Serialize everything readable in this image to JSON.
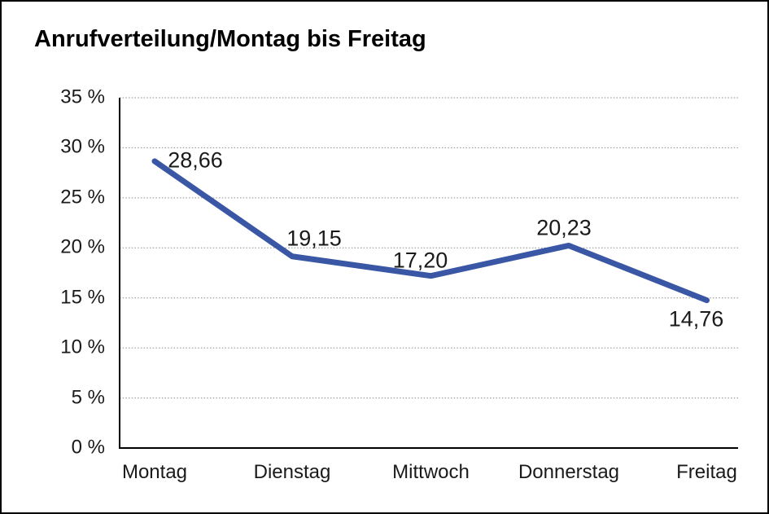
{
  "window": {
    "background": "#ffffff",
    "border_color": "#000000"
  },
  "chart_data": {
    "type": "line",
    "title": "Anrufverteilung/Montag bis Freitag",
    "categories": [
      "Montag",
      "Dienstag",
      "Mittwoch",
      "Donnerstag",
      "Freitag"
    ],
    "series": [
      {
        "name": "Anrufverteilung",
        "values": [
          28.66,
          19.15,
          17.2,
          20.23,
          14.76
        ]
      }
    ],
    "data_labels": [
      "28,66",
      "19,15",
      "17,20",
      "20,23",
      "14,76"
    ],
    "y_ticks": [
      35,
      30,
      25,
      20,
      15,
      10,
      5,
      0
    ],
    "y_tick_labels": [
      "35 %",
      "30 %",
      "25 %",
      "20 %",
      "15 %",
      "10 %",
      "5 %",
      "0 %"
    ],
    "ylim": [
      0,
      35
    ],
    "xlabel": "",
    "ylabel": "",
    "grid": "dotted-horizontal",
    "legend": "none",
    "line_color": "#3A57A5",
    "axis_color": "#000000",
    "gridline_color": "#8c8c8c",
    "text_color": "#1a1a1a"
  }
}
